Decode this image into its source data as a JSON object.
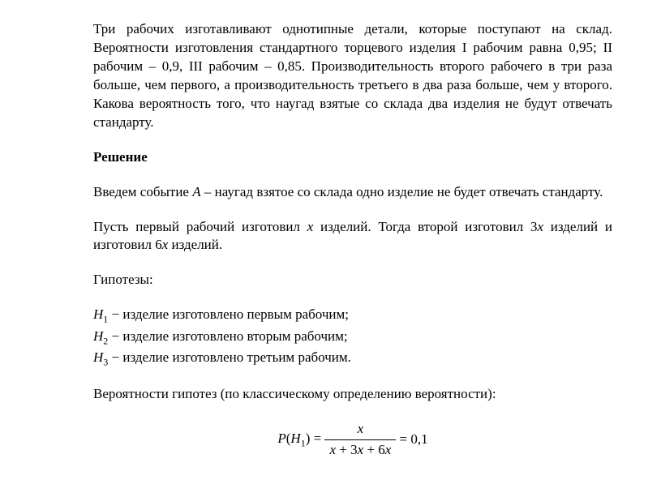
{
  "problem": {
    "text": "Три рабочих изготавливают однотипные детали, которые поступают на склад. Вероятности изготовления стандартного торцевого изделия I рабочим равна 0,95; II рабочим – 0,9, III рабочим – 0,85. Производительность второго рабочего в три раза больше, чем первого, а производительность третьего в два раза больше, чем у второго. Какова вероятность того, что наугад взятые со склада два изделия не будут отвечать стандарту."
  },
  "solution": {
    "header": "Решение",
    "event_intro_prefix": "Введем событие ",
    "event_var": "A",
    "event_intro_suffix": " – наугад взятое со склада одно изделие не будет отвечать стандарту.",
    "productivity_p1": "Пусть первый рабочий изготовил ",
    "var_x": "x",
    "productivity_p2": " изделий. Тогда второй изготовил 3",
    "productivity_p3": " изделий и изготовил 6",
    "productivity_p4": " изделий.",
    "hypotheses_label": "Гипотезы:",
    "hypotheses": [
      {
        "sym": "H",
        "sub": "1",
        "sep": " − ",
        "text": "изделие изготовлено первым рабочим;"
      },
      {
        "sym": "H",
        "sub": "2",
        "sep": " − ",
        "text": "изделие изготовлено вторым рабочим;"
      },
      {
        "sym": "H",
        "sub": "3",
        "sep": " − ",
        "text": "изделие изготовлено третьим рабочим."
      }
    ],
    "prob_intro": "Вероятности гипотез (по классическому определению вероятности):",
    "formula": {
      "left_func": "P",
      "left_open": "(",
      "left_sym": "H",
      "left_sub": "1",
      "left_close": ")",
      "eq1": " = ",
      "numerator": "x",
      "denom_p1": "x",
      "denom_plus1": " + 3",
      "denom_p2": "x",
      "denom_plus2": " + 6",
      "denom_p3": "x",
      "eq2": " = 0,1"
    }
  },
  "styling": {
    "font_family": "Times New Roman",
    "font_size_pt": 13,
    "text_color": "#000000",
    "background_color": "#ffffff",
    "line_height": 1.35,
    "text_align": "justify"
  }
}
